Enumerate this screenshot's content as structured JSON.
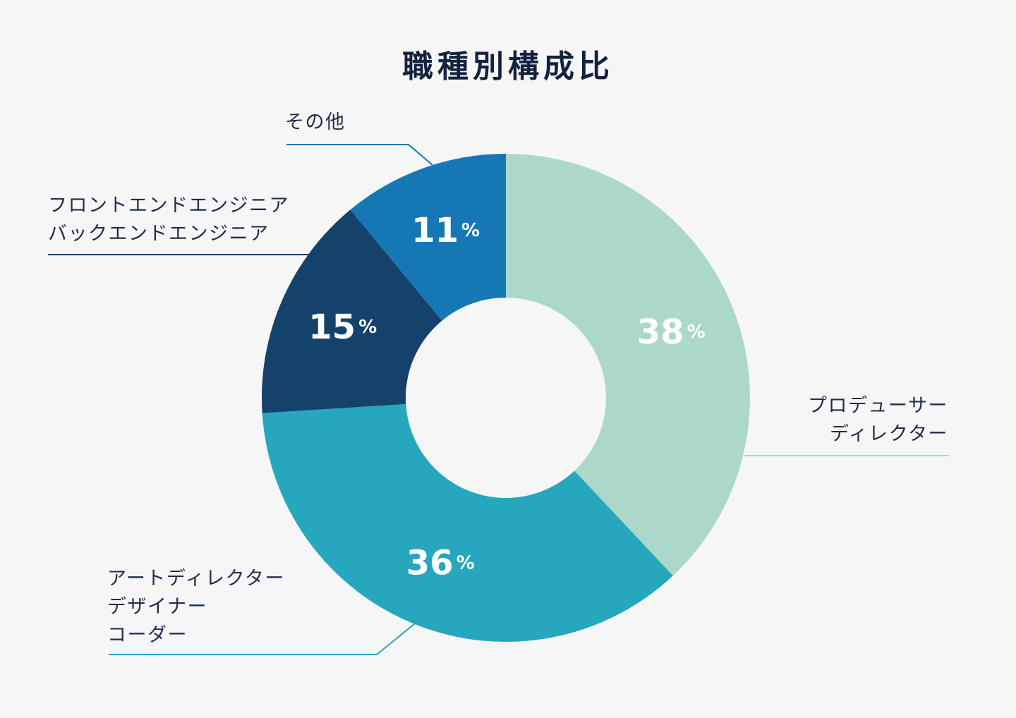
{
  "chart_data": {
    "type": "pie",
    "title": "職種別構成比",
    "unit": "%",
    "slices": [
      {
        "value": 38,
        "label_lines": [
          "プロデューサー",
          "ディレクター"
        ],
        "color": "#acd8cb"
      },
      {
        "value": 36,
        "label_lines": [
          "アートディレクター",
          "デザイナー",
          "コーダー"
        ],
        "color": "#27a7bd"
      },
      {
        "value": 15,
        "label_lines": [
          "フロントエンドエンジニア",
          "バックエンドエンジニア"
        ],
        "color": "#15426a"
      },
      {
        "value": 11,
        "label_lines": [
          "その他"
        ],
        "color": "#1677b5"
      }
    ]
  }
}
